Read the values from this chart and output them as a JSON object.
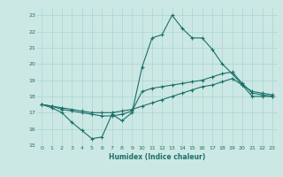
{
  "xlabel": "Humidex (Indice chaleur)",
  "ylabel": "",
  "xlim": [
    -0.5,
    23.5
  ],
  "ylim": [
    15,
    23.5
  ],
  "yticks": [
    15,
    16,
    17,
    18,
    19,
    20,
    21,
    22,
    23
  ],
  "xticks": [
    0,
    1,
    2,
    3,
    4,
    5,
    6,
    7,
    8,
    9,
    10,
    11,
    12,
    13,
    14,
    15,
    16,
    17,
    18,
    19,
    20,
    21,
    22,
    23
  ],
  "bg_color": "#cce8e4",
  "grid_color": "#aad4cf",
  "line_color": "#1a7068",
  "line1": {
    "x": [
      0,
      1,
      2,
      3,
      4,
      5,
      6,
      7,
      8,
      9,
      10,
      11,
      12,
      13,
      14,
      15,
      16,
      17,
      18,
      19,
      20,
      21,
      22,
      23
    ],
    "y": [
      17.5,
      17.3,
      17.0,
      16.4,
      15.9,
      15.4,
      15.5,
      16.9,
      16.5,
      17.0,
      19.8,
      21.6,
      21.8,
      23.0,
      22.2,
      21.6,
      21.6,
      20.9,
      20.0,
      19.4,
      18.7,
      18.0,
      18.0,
      18.0
    ]
  },
  "line2": {
    "x": [
      0,
      1,
      2,
      3,
      4,
      5,
      6,
      7,
      8,
      9,
      10,
      11,
      12,
      13,
      14,
      15,
      16,
      17,
      18,
      19,
      20,
      21,
      22,
      23
    ],
    "y": [
      17.5,
      17.4,
      17.2,
      17.1,
      17.0,
      16.9,
      16.8,
      16.8,
      16.9,
      17.1,
      18.3,
      18.5,
      18.6,
      18.7,
      18.8,
      18.9,
      19.0,
      19.2,
      19.4,
      19.5,
      18.8,
      18.2,
      18.1,
      18.0
    ]
  },
  "line3": {
    "x": [
      0,
      1,
      2,
      3,
      4,
      5,
      6,
      7,
      8,
      9,
      10,
      11,
      12,
      13,
      14,
      15,
      16,
      17,
      18,
      19,
      20,
      21,
      22,
      23
    ],
    "y": [
      17.5,
      17.4,
      17.3,
      17.2,
      17.1,
      17.0,
      17.0,
      17.0,
      17.1,
      17.2,
      17.4,
      17.6,
      17.8,
      18.0,
      18.2,
      18.4,
      18.6,
      18.7,
      18.9,
      19.1,
      18.7,
      18.3,
      18.2,
      18.1
    ]
  }
}
